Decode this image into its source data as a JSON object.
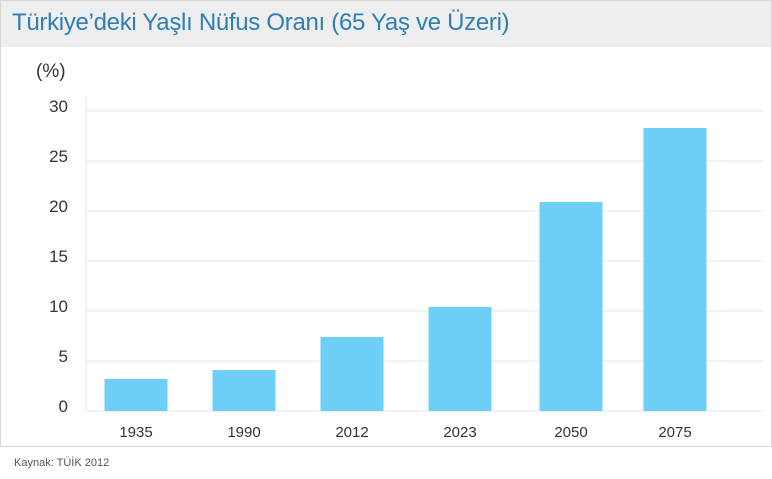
{
  "title": "Türkiye’deki Yaşlı Nüfus Oranı (65 Yaş ve Üzeri)",
  "source": "Kaynak: TÜİK 2012",
  "colors": {
    "bar": "#6dcff6",
    "title": "#2f7fb2",
    "grid": "#e6e6e6"
  },
  "chart_data": {
    "type": "bar",
    "title": "Türkiye’deki Yaşlı Nüfus Oranı (65 Yaş ve Üzeri)",
    "ylabel": "(%)",
    "xlabel": "",
    "categories": [
      "1935",
      "1990",
      "2012",
      "2023",
      "2050",
      "2075"
    ],
    "values": [
      3.2,
      4.1,
      7.4,
      10.4,
      20.9,
      28.3
    ],
    "ylim": [
      0,
      30
    ],
    "yticks": [
      "0",
      "5",
      "10",
      "15",
      "20",
      "25",
      "30"
    ],
    "grid": true,
    "legend": "none"
  }
}
